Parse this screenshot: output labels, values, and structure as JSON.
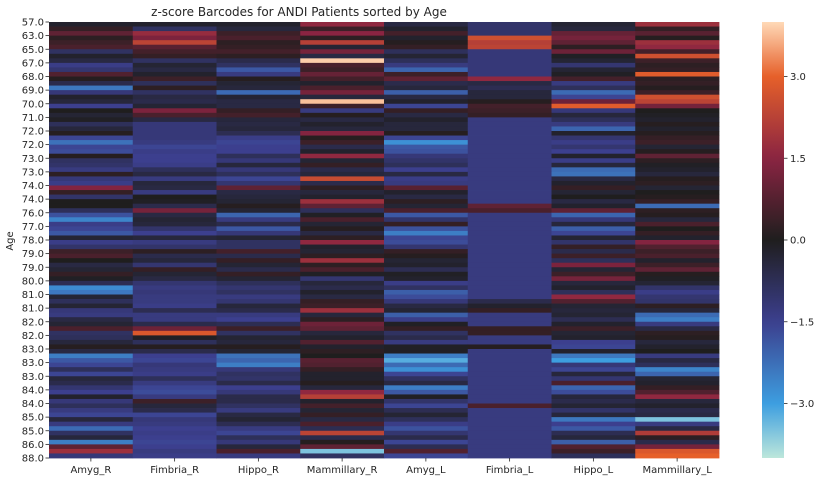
{
  "chart_data": {
    "type": "heatmap",
    "title": "z-score Barcodes for ANDI Patients sorted by Age",
    "xlabel": "",
    "ylabel": "Age",
    "categories": [
      "Amyg_R",
      "Fimbria_R",
      "Hippo_R",
      "Mammillary_R",
      "Amyg_L",
      "Fimbria_L",
      "Hippo_L",
      "Mammillary_L"
    ],
    "y_tick_labels": [
      "57.0",
      "63.0",
      "65.0",
      "67.0",
      "68.0",
      "69.0",
      "70.0",
      "71.0",
      "72.0",
      "72.0",
      "73.0",
      "73.0",
      "74.0",
      "74.0",
      "76.0",
      "77.0",
      "78.0",
      "79.0",
      "79.0",
      "80.0",
      "81.0",
      "81.0",
      "82.0",
      "82.0",
      "83.0",
      "83.0",
      "83.0",
      "84.0",
      "84.0",
      "85.0",
      "85.0",
      "86.0",
      "88.0"
    ],
    "rows_per_tick": 3,
    "grid": false,
    "colorbar": {
      "min": -4.0,
      "max": 4.0,
      "ticks": [
        3.0,
        1.5,
        0.0,
        -1.5,
        -3.0
      ],
      "tick_labels": [
        "3.0",
        "1.5",
        "0.0",
        "−1.5",
        "−3.0"
      ],
      "colormap": "icefire",
      "color_stops": [
        [
          -4.0,
          "#bde7db"
        ],
        [
          -3.0,
          "#3d9ee0"
        ],
        [
          -1.5,
          "#3c3f8e"
        ],
        [
          0.0,
          "#1f1e1e"
        ],
        [
          1.5,
          "#8a2442"
        ],
        [
          3.0,
          "#e6602a"
        ],
        [
          4.0,
          "#ffd9b7"
        ]
      ]
    },
    "values": [
      [
        -0.2,
        -0.2,
        -0.2,
        1.6,
        -0.5,
        -1.0,
        -0.3,
        1.8
      ],
      [
        0.3,
        -0.9,
        -0.4,
        0.4,
        -0.2,
        -1.0,
        -0.4,
        0.3
      ],
      [
        0.9,
        1.7,
        0.4,
        1.5,
        0.5,
        -1.0,
        1.0,
        0.8
      ],
      [
        0.2,
        1.3,
        0.6,
        0.2,
        -0.2,
        2.6,
        1.2,
        0.1
      ],
      [
        0.4,
        2.3,
        0.2,
        2.2,
        0.1,
        2.2,
        0.9,
        1.8
      ],
      [
        0.6,
        0.8,
        0.3,
        -0.3,
        0.3,
        2.3,
        0.2,
        1.6
      ],
      [
        -0.9,
        0.5,
        0.5,
        1.2,
        -0.8,
        -1.2,
        1.1,
        0.5
      ],
      [
        -0.2,
        0.3,
        0.2,
        -0.5,
        -0.3,
        -1.2,
        -0.1,
        2.6
      ],
      [
        -0.5,
        -0.9,
        -0.6,
        3.9,
        -0.8,
        -1.2,
        -0.3,
        0.4
      ],
      [
        -1.4,
        -0.3,
        -0.9,
        0.6,
        -1.3,
        -1.2,
        -1.1,
        0.2
      ],
      [
        -1.1,
        -0.5,
        -1.9,
        0.4,
        -2.1,
        -1.2,
        -0.3,
        0.3
      ],
      [
        0.7,
        -0.2,
        -1.3,
        1.0,
        0.4,
        -1.2,
        -0.1,
        2.9
      ],
      [
        0.1,
        0.4,
        0.1,
        0.5,
        0.9,
        1.6,
        0.5,
        0.2
      ],
      [
        -0.6,
        -0.8,
        -0.3,
        -0.2,
        -0.6,
        -0.5,
        -1.3,
        0.3
      ],
      [
        -2.4,
        0.2,
        -0.4,
        0.6,
        -0.4,
        -0.7,
        -0.8,
        0.1
      ],
      [
        -1.2,
        -0.9,
        -2.2,
        1.2,
        -2.0,
        -0.4,
        -2.2,
        0.4
      ],
      [
        -0.2,
        -0.5,
        -0.3,
        -0.4,
        -0.5,
        -0.4,
        -1.6,
        2.6
      ],
      [
        -0.4,
        -0.6,
        -0.5,
        3.8,
        -0.2,
        0.1,
        1.1,
        2.3
      ],
      [
        -1.5,
        -0.3,
        -0.5,
        0.4,
        -1.6,
        0.5,
        2.9,
        1.2
      ],
      [
        0.0,
        1.3,
        0.3,
        -1.3,
        0.3,
        0.4,
        -1.2,
        0.0
      ],
      [
        -0.3,
        0.6,
        0.5,
        0.1,
        -0.5,
        0.3,
        -0.4,
        -0.1
      ],
      [
        -0.1,
        -0.5,
        -0.4,
        -0.5,
        -0.2,
        -1.3,
        -0.8,
        -0.2
      ],
      [
        -0.8,
        -1.2,
        -0.5,
        -0.2,
        -0.4,
        -1.3,
        -1.3,
        0.1
      ],
      [
        -0.4,
        -1.2,
        -0.4,
        -0.4,
        -0.4,
        -1.3,
        -2.1,
        -0.2
      ],
      [
        0.1,
        -1.2,
        -0.7,
        1.4,
        0.1,
        -1.3,
        -0.2,
        0.1
      ],
      [
        -1.6,
        -1.2,
        -1.4,
        0.1,
        -1.6,
        -1.3,
        -1.1,
        0.3
      ],
      [
        -2.3,
        -1.3,
        -1.6,
        0.4,
        -2.8,
        -1.3,
        -1.4,
        0.4
      ],
      [
        -1.6,
        -1.6,
        -1.5,
        -0.6,
        -1.9,
        -1.3,
        -1.1,
        -0.3
      ],
      [
        -1.7,
        -1.4,
        -1.5,
        -0.2,
        -1.8,
        -1.3,
        -1.5,
        0.1
      ],
      [
        0.1,
        -1.5,
        -0.8,
        1.6,
        -1.2,
        -1.3,
        -0.2,
        0.9
      ],
      [
        -0.9,
        -1.5,
        -1.2,
        -0.3,
        -1.0,
        -1.3,
        -1.4,
        0.2
      ],
      [
        -1.0,
        -1.4,
        -0.4,
        0.3,
        -0.8,
        -1.3,
        -0.4,
        -0.1
      ],
      [
        -1.3,
        -0.8,
        -1.2,
        -0.6,
        -1.5,
        -1.3,
        -2.2,
        -0.2
      ],
      [
        0.2,
        -0.5,
        -0.8,
        -0.4,
        -0.5,
        -1.3,
        -2.3,
        -0.4
      ],
      [
        -1.2,
        -1.3,
        -1.6,
        2.5,
        -1.4,
        -1.3,
        -0.5,
        0.1
      ],
      [
        -1.4,
        -0.4,
        -1.1,
        -0.6,
        -1.3,
        -1.3,
        -0.2,
        0.2
      ],
      [
        1.4,
        -0.5,
        0.9,
        0.2,
        0.8,
        -1.3,
        0.3,
        -0.3
      ],
      [
        0.3,
        -1.3,
        -0.5,
        -0.4,
        -0.2,
        -1.3,
        -0.3,
        0.0
      ],
      [
        -1.0,
        0.0,
        -0.4,
        -0.2,
        -0.5,
        -1.3,
        0.0,
        0.1
      ],
      [
        0.0,
        -0.1,
        -0.3,
        1.8,
        0.2,
        -1.3,
        -0.5,
        0.3
      ],
      [
        0.0,
        -0.6,
        0.1,
        0.9,
        -0.3,
        0.9,
        -0.2,
        -2.2
      ],
      [
        -0.8,
        1.2,
        -0.3,
        -0.8,
        0.6,
        0.6,
        0.9,
        0.2
      ],
      [
        -1.8,
        -0.5,
        -2.1,
        -0.1,
        -1.9,
        -1.3,
        -2.1,
        0.1
      ],
      [
        -2.6,
        -0.3,
        -1.3,
        0.6,
        -1.0,
        -1.3,
        -1.2,
        -0.4
      ],
      [
        -1.4,
        -0.4,
        -0.6,
        -0.3,
        0.3,
        -1.3,
        -0.4,
        0.6
      ],
      [
        -1.6,
        -1.0,
        -1.9,
        0.1,
        -1.8,
        -1.3,
        -2.0,
        0.0
      ],
      [
        -1.9,
        -1.5,
        -1.2,
        -0.5,
        -2.5,
        -1.3,
        -1.6,
        0.3
      ],
      [
        -0.3,
        -0.4,
        -0.3,
        0.2,
        -1.6,
        -1.3,
        -0.3,
        -0.2
      ],
      [
        -1.4,
        -1.3,
        -0.9,
        1.6,
        -1.7,
        -1.3,
        -1.0,
        1.4
      ],
      [
        -1.0,
        -1.0,
        -0.9,
        -0.2,
        -1.1,
        -1.3,
        0.3,
        0.7
      ],
      [
        0.4,
        0.2,
        0.5,
        -0.3,
        0.3,
        -1.3,
        -0.6,
        0.4
      ],
      [
        0.6,
        -0.6,
        -0.6,
        0.2,
        0.1,
        -1.3,
        0.4,
        0.6
      ],
      [
        0.0,
        -0.4,
        0.3,
        1.8,
        -0.3,
        -1.3,
        -0.8,
        -0.2
      ],
      [
        -0.5,
        -1.1,
        -0.3,
        0.2,
        -0.2,
        -1.3,
        1.3,
        0.4
      ],
      [
        -0.3,
        0.3,
        -0.6,
        0.6,
        -0.7,
        -1.3,
        -0.3,
        0.9
      ],
      [
        0.3,
        -0.3,
        0.3,
        -0.1,
        -0.1,
        -1.3,
        0.4,
        0.1
      ],
      [
        -0.1,
        -0.5,
        -0.3,
        -1.1,
        -0.2,
        -1.3,
        1.2,
        -0.1
      ],
      [
        -0.7,
        -1.1,
        -0.8,
        -0.4,
        -1.4,
        -1.3,
        -0.4,
        -0.3
      ],
      [
        -2.7,
        -1.3,
        -1.1,
        -0.6,
        -0.9,
        -1.3,
        -0.2,
        -1.0
      ],
      [
        -2.4,
        -1.2,
        -0.9,
        -0.2,
        -2.0,
        -1.3,
        -0.8,
        -1.4
      ],
      [
        -0.3,
        -1.3,
        -1.3,
        -0.5,
        -1.7,
        -1.3,
        1.6,
        -1.1
      ],
      [
        -0.8,
        -1.3,
        -1.1,
        0.3,
        -1.2,
        -0.6,
        0.7,
        -1.0
      ],
      [
        -0.3,
        -1.4,
        -0.4,
        0.4,
        -0.5,
        -0.2,
        -0.3,
        0.2
      ],
      [
        -1.2,
        -0.7,
        -0.6,
        1.8,
        -0.3,
        0.3,
        -0.4,
        -0.4
      ],
      [
        -1.3,
        -1.3,
        -1.3,
        -0.4,
        -2.0,
        -1.3,
        -0.3,
        -2.2
      ],
      [
        -0.5,
        -1.3,
        -1.5,
        0.2,
        -1.4,
        -1.3,
        -0.7,
        -2.5
      ],
      [
        -0.3,
        -0.6,
        -0.7,
        1.1,
        -0.1,
        -1.3,
        -0.2,
        -1.3
      ],
      [
        0.6,
        1.1,
        0.4,
        0.9,
        0.3,
        0.3,
        0.4,
        -0.5
      ],
      [
        -0.9,
        2.8,
        -0.9,
        -0.4,
        -0.9,
        0.3,
        -0.3,
        0.2
      ],
      [
        -0.8,
        -0.1,
        -0.3,
        -0.2,
        -0.6,
        -1.3,
        -0.2,
        0.1
      ],
      [
        -0.4,
        -0.8,
        -0.4,
        0.7,
        -1.3,
        -1.3,
        -1.5,
        -0.4
      ],
      [
        0.1,
        0.1,
        0.1,
        -0.2,
        -0.1,
        0.1,
        -1.6,
        -0.2
      ],
      [
        -0.5,
        -0.6,
        -0.3,
        0.2,
        -0.1,
        -1.3,
        -0.2,
        0.0
      ],
      [
        -2.5,
        -1.5,
        -2.3,
        0.0,
        -2.5,
        -1.3,
        -2.4,
        -1.3
      ],
      [
        -1.9,
        -1.6,
        -2.1,
        0.8,
        -3.2,
        -1.3,
        -3.0,
        -0.5
      ],
      [
        -1.6,
        -1.2,
        -2.5,
        0.7,
        -2.2,
        -1.3,
        -1.2,
        -0.8
      ],
      [
        -0.8,
        -1.3,
        -1.2,
        0.3,
        -2.8,
        -1.3,
        -1.6,
        -2.6
      ],
      [
        -1.6,
        -1.4,
        -0.9,
        -0.2,
        -1.6,
        -1.3,
        -0.4,
        -2.1
      ],
      [
        -0.4,
        -0.8,
        -1.0,
        -0.2,
        -0.9,
        -1.3,
        -1.1,
        -0.3
      ],
      [
        -0.6,
        -1.3,
        -0.6,
        0.1,
        -0.5,
        -1.3,
        0.6,
        -0.2
      ],
      [
        -1.1,
        -1.6,
        -1.5,
        -0.4,
        -2.5,
        -1.3,
        -2.1,
        0.3
      ],
      [
        -1.5,
        -1.7,
        -1.2,
        1.6,
        -1.9,
        -1.3,
        -1.7,
        0.7
      ],
      [
        -0.2,
        -1.3,
        -0.6,
        2.2,
        -0.1,
        -1.3,
        -0.4,
        1.6
      ],
      [
        -1.2,
        0.4,
        -0.6,
        -0.2,
        -1.0,
        -1.3,
        -0.6,
        -0.4
      ],
      [
        -0.8,
        -0.4,
        -0.9,
        0.5,
        -1.6,
        0.6,
        -0.3,
        -0.2
      ],
      [
        -1.3,
        -0.6,
        -1.3,
        -0.3,
        -0.7,
        -1.3,
        -1.0,
        -0.6
      ],
      [
        -1.6,
        -1.6,
        -0.5,
        0.3,
        -0.3,
        -1.3,
        -0.4,
        -0.5
      ],
      [
        -0.4,
        -1.2,
        -0.3,
        -0.5,
        -0.8,
        -1.3,
        -2.4,
        -3.5
      ],
      [
        -1.3,
        -1.3,
        -0.7,
        0.6,
        -1.4,
        -1.3,
        -1.5,
        -1.3
      ],
      [
        -2.2,
        -1.5,
        -1.3,
        -0.7,
        -1.8,
        -1.3,
        -1.9,
        -0.5
      ],
      [
        -0.9,
        -1.4,
        -1.6,
        2.3,
        -1.1,
        -1.3,
        -0.7,
        2.1
      ],
      [
        -0.4,
        -1.5,
        -0.8,
        -0.6,
        -0.6,
        -1.3,
        -0.4,
        0.2
      ],
      [
        -2.5,
        -1.6,
        -1.2,
        0.1,
        -1.6,
        -1.3,
        -2.0,
        -0.6
      ],
      [
        0.9,
        -1.5,
        -0.4,
        0.9,
        -0.7,
        -1.3,
        0.7,
        1.2
      ],
      [
        1.8,
        -1.3,
        0.6,
        -3.5,
        0.7,
        -1.3,
        0.4,
        2.8
      ],
      [
        -1.2,
        -1.4,
        -1.3,
        -0.9,
        -1.6,
        -1.3,
        -0.8,
        3.0
      ]
    ]
  }
}
